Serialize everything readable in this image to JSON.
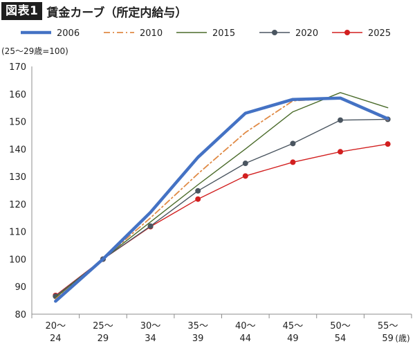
{
  "figure": {
    "badge": "図表1",
    "title": "賃金カーブ（所定内給与）"
  },
  "chart_data": {
    "type": "line",
    "ylabel": "(25〜29歳=100)",
    "xlabel": "(歳)",
    "ylim": [
      80,
      170
    ],
    "yticks": [
      80,
      90,
      100,
      110,
      120,
      130,
      140,
      150,
      160,
      170
    ],
    "grid": false,
    "legend_position": "top",
    "categories": [
      [
        "20〜",
        "24"
      ],
      [
        "25〜",
        "29"
      ],
      [
        "30〜",
        "34"
      ],
      [
        "35〜",
        "39"
      ],
      [
        "40〜",
        "44"
      ],
      [
        "45〜",
        "49"
      ],
      [
        "50〜",
        "54"
      ],
      [
        "55〜",
        "59"
      ]
    ],
    "series": [
      {
        "name": "2006",
        "color": "#4472c4",
        "style": "thick",
        "values": [
          84.7,
          100,
          117,
          137,
          153,
          158,
          158.5,
          151
        ]
      },
      {
        "name": "2010",
        "color": "#e08a45",
        "style": "dashdot",
        "values": [
          85.5,
          100,
          115,
          131,
          146,
          157.5,
          158.5,
          150.5
        ]
      },
      {
        "name": "2015",
        "color": "#4a6b2a",
        "style": "solid",
        "values": [
          86,
          100,
          113.5,
          127,
          140,
          153.5,
          160.5,
          155
        ]
      },
      {
        "name": "2020",
        "color": "#4a5560",
        "style": "marker",
        "values": [
          86.5,
          100,
          112,
          124.8,
          134.8,
          142,
          150.5,
          150.8
        ]
      },
      {
        "name": "2025",
        "color": "#d21f1f",
        "style": "marker",
        "values": [
          86.8,
          100,
          111.8,
          121.8,
          130.2,
          135.2,
          139,
          141.8
        ]
      }
    ]
  }
}
